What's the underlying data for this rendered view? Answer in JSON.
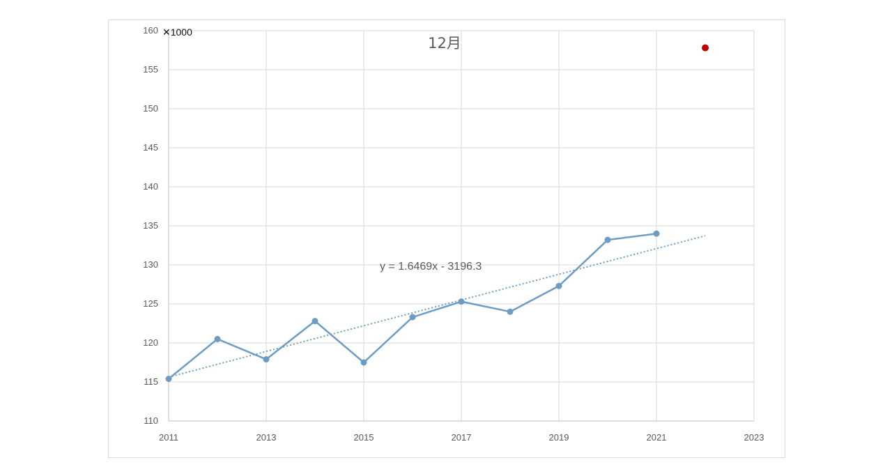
{
  "chart_data": {
    "type": "scatter",
    "title": "12月",
    "multiplier_label": "✕1000",
    "x": [
      2011,
      2012,
      2013,
      2014,
      2015,
      2016,
      2017,
      2018,
      2019,
      2020,
      2021
    ],
    "series": [
      {
        "values": [
          115.4,
          120.5,
          117.9,
          122.8,
          117.5,
          123.3,
          125.3,
          124.0,
          127.3,
          133.2,
          134.0
        ],
        "color": "#6c9cc3"
      }
    ],
    "outlier_point": {
      "x": 2022,
      "y": 157.8,
      "color": "#c00000"
    },
    "trendline": {
      "equation": "y = 1.6469x - 3196.3",
      "slope": 1.6469,
      "intercept": -3196.3,
      "x_range": [
        2011,
        2022
      ],
      "style": "dotted",
      "color": "#6c9cc3"
    },
    "xlim": [
      2011,
      2023
    ],
    "ylim": [
      110,
      160
    ],
    "x_ticks": [
      "2011",
      "2013",
      "2015",
      "2017",
      "2019",
      "2021",
      "2023"
    ],
    "y_ticks": [
      "110",
      "115",
      "120",
      "125",
      "130",
      "135",
      "140",
      "145",
      "150",
      "155",
      "160"
    ],
    "grid": true
  }
}
